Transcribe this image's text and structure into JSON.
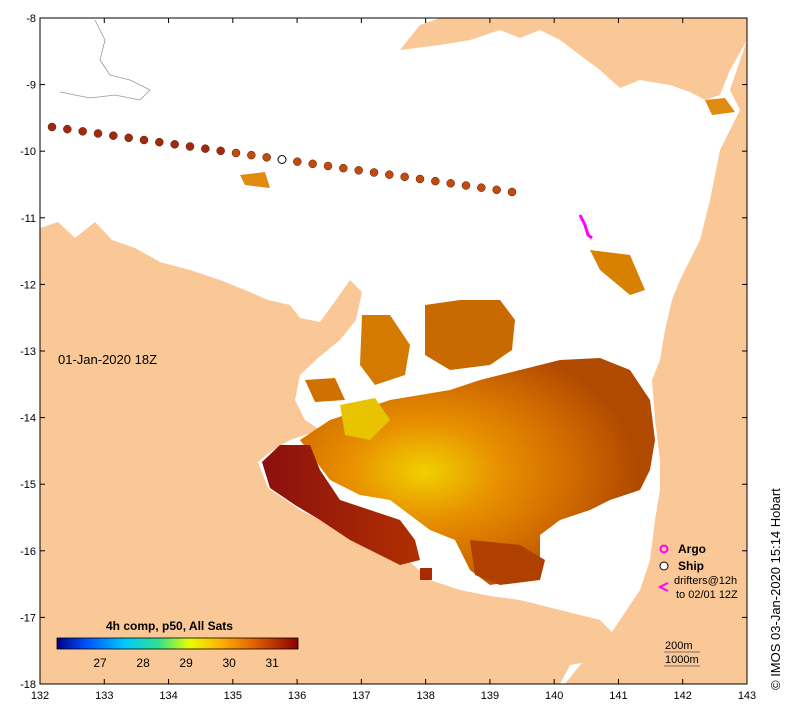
{
  "map": {
    "date_label": "01-Jan-2020 18Z",
    "credit": "© IMOS 03-Jan-2020 15:14 Hobart",
    "lon_range": [
      132,
      143
    ],
    "lat_range": [
      -18,
      -8
    ],
    "lon_ticks": [
      "132",
      "133",
      "134",
      "135",
      "136",
      "137",
      "138",
      "139",
      "140",
      "141",
      "142",
      "143"
    ],
    "lat_ticks": [
      "-8",
      "-9",
      "-10",
      "-11",
      "-12",
      "-13",
      "-14",
      "-15",
      "-16",
      "-17",
      "-18"
    ],
    "colors": {
      "land": "#fac796",
      "sea": "#ffffff",
      "argo": "#ff00ff",
      "warm": "#c85a00",
      "hot": "#8b0f0f"
    }
  },
  "legend": {
    "argo_label": "Argo",
    "ship_label": "Ship",
    "drifters_line1": "drifters@12h",
    "drifters_line2": "to 02/01 12Z",
    "depth_200": "200m",
    "depth_1000": "1000m"
  },
  "colorbar": {
    "title": "4h comp, p50, All Sats",
    "ticks": [
      "27",
      "28",
      "29",
      "30",
      "31"
    ]
  }
}
